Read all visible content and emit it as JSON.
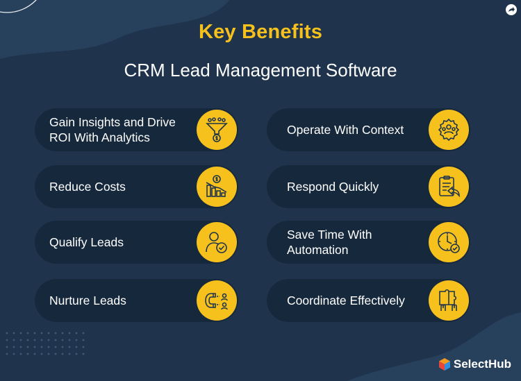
{
  "header": {
    "title": "Key Benefits",
    "subtitle": "CRM Lead Management Software"
  },
  "benefits_left": [
    {
      "label": "Gain Insights and Drive\nROI With Analytics",
      "icon": "funnel-dollar-icon"
    },
    {
      "label": "Reduce Costs",
      "icon": "cost-decline-chart-icon"
    },
    {
      "label": "Qualify Leads",
      "icon": "qualified-user-icon"
    },
    {
      "label": "Nurture Leads",
      "icon": "magnet-leads-icon"
    }
  ],
  "benefits_right": [
    {
      "label": "Operate With Context",
      "icon": "gear-team-icon"
    },
    {
      "label": "Respond Quickly",
      "icon": "clipboard-reply-icon"
    },
    {
      "label": "Save Time With\nAutomation",
      "icon": "clock-check-icon"
    },
    {
      "label": "Coordinate Effectively",
      "icon": "puzzle-hands-icon"
    }
  ],
  "brand": {
    "name": "SelectHub"
  },
  "colors": {
    "background": "#1f344c",
    "card": "#16283c",
    "accent": "#f6c11d"
  }
}
